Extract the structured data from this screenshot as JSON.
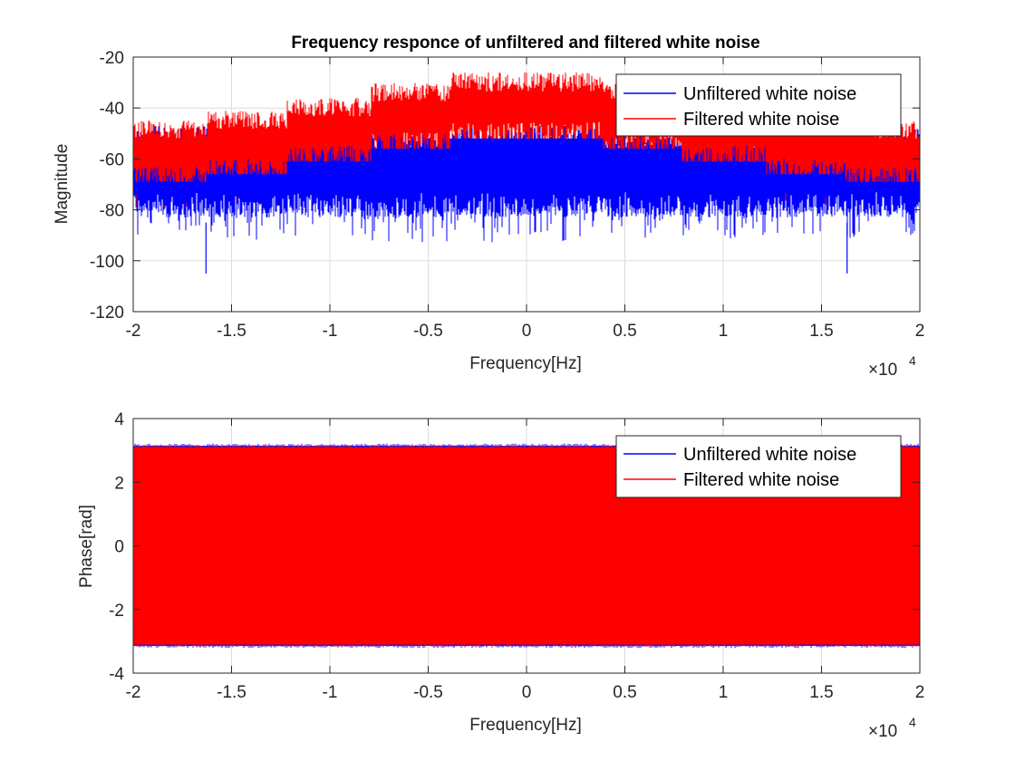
{
  "chart_data": [
    {
      "type": "line",
      "title": "Frequency responce of unfiltered and filtered white noise",
      "xlabel": "Frequency[Hz]",
      "ylabel": "Magnitude",
      "x_exponent_label": "×10",
      "x_exponent": "4",
      "xlim": [
        -20000,
        20000
      ],
      "ylim": [
        -120,
        -20
      ],
      "xticks": [
        -20000,
        -15000,
        -10000,
        -5000,
        0,
        5000,
        10000,
        15000,
        20000
      ],
      "xtick_labels": [
        "-2",
        "-1.5",
        "-1",
        "-0.5",
        "0",
        "0.5",
        "1",
        "1.5",
        "2"
      ],
      "yticks": [
        -120,
        -100,
        -80,
        -60,
        -40,
        -20
      ],
      "ytick_labels": [
        "-120",
        "-100",
        "-80",
        "-60",
        "-40",
        "-20"
      ],
      "grid": true,
      "legend_position": "top-right",
      "series": [
        {
          "name": "Unfiltered white noise",
          "color": "#0000ff",
          "band": "noise",
          "envelope": {
            "x": [
              -20000,
              0,
              20000
            ],
            "top": [
              -47,
              -47,
              -47
            ],
            "bottom": [
              -83,
              -83,
              -83
            ]
          },
          "min_spikes": [
            {
              "x": -16300,
              "y": -105
            },
            {
              "x": 16300,
              "y": -105
            }
          ],
          "max_spikes": [
            {
              "x": -400,
              "y": -48
            },
            {
              "x": 400,
              "y": -48
            }
          ]
        },
        {
          "name": "Filtered white noise",
          "color": "#ff0000",
          "band": "noise",
          "envelope": {
            "x": [
              -20000,
              -16200,
              -16200,
              -12200,
              -12200,
              -7900,
              -7900,
              -3900,
              -3900,
              3900,
              3900,
              7900,
              7900,
              12200,
              12200,
              16200,
              16200,
              20000
            ],
            "top": [
              -45,
              -45,
              -41,
              -41,
              -36,
              -36,
              -30,
              -30,
              -26,
              -26,
              -30,
              -30,
              -36,
              -36,
              -41,
              -41,
              -45,
              -45
            ],
            "bottom": [
              -73,
              -73,
              -70,
              -70,
              -65,
              -65,
              -60,
              -60,
              -56,
              -56,
              -60,
              -60,
              -65,
              -65,
              -70,
              -70,
              -73,
              -73
            ]
          }
        }
      ]
    },
    {
      "type": "line",
      "title": "",
      "xlabel": "Frequency[Hz]",
      "ylabel": "Phase[rad]",
      "x_exponent_label": "×10",
      "x_exponent": "4",
      "xlim": [
        -20000,
        20000
      ],
      "ylim": [
        -4,
        4
      ],
      "xticks": [
        -20000,
        -15000,
        -10000,
        -5000,
        0,
        5000,
        10000,
        15000,
        20000
      ],
      "xtick_labels": [
        "-2",
        "-1.5",
        "-1",
        "-0.5",
        "0",
        "0.5",
        "1",
        "1.5",
        "2"
      ],
      "yticks": [
        -4,
        -2,
        0,
        2,
        4
      ],
      "ytick_labels": [
        "-4",
        "-2",
        "0",
        "2",
        "4"
      ],
      "grid": true,
      "legend_position": "top-right",
      "series": [
        {
          "name": "Unfiltered white noise",
          "color": "#0000ff",
          "band": "fill",
          "envelope": {
            "x": [
              -20000,
              20000
            ],
            "top": [
              3.14,
              3.14
            ],
            "bottom": [
              -3.14,
              -3.14
            ]
          }
        },
        {
          "name": "Filtered white noise",
          "color": "#ff0000",
          "band": "fill",
          "envelope": {
            "x": [
              -20000,
              20000
            ],
            "top": [
              3.1,
              3.1
            ],
            "bottom": [
              -3.1,
              -3.1
            ]
          }
        }
      ]
    }
  ]
}
